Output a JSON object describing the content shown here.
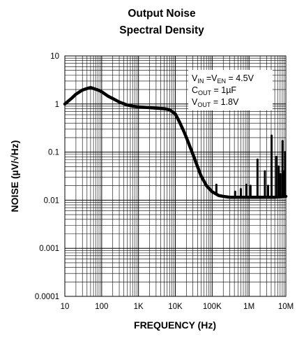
{
  "chart_data": {
    "type": "line",
    "title_line1": "Output Noise",
    "title_line2": "Spectral Density",
    "xlabel": "FREQUENCY (Hz)",
    "ylabel": "NOISE (µV/√Hz)",
    "x_scale": "log",
    "y_scale": "log",
    "xlim": [
      10,
      10000000
    ],
    "ylim": [
      0.0001,
      10
    ],
    "grid": true,
    "x_ticks": [
      {
        "value": 10,
        "label": "10"
      },
      {
        "value": 100,
        "label": "100"
      },
      {
        "value": 1000,
        "label": "1K"
      },
      {
        "value": 10000,
        "label": "10K"
      },
      {
        "value": 100000,
        "label": "100K"
      },
      {
        "value": 1000000,
        "label": "1M"
      },
      {
        "value": 10000000,
        "label": "10M"
      }
    ],
    "y_ticks": [
      {
        "value": 10,
        "label": "10"
      },
      {
        "value": 1,
        "label": "1"
      },
      {
        "value": 0.1,
        "label": "0.1"
      },
      {
        "value": 0.01,
        "label": "0.01"
      },
      {
        "value": 0.001,
        "label": "0.001"
      },
      {
        "value": 0.0001,
        "label": "0.0001"
      }
    ],
    "annotation": {
      "line1": {
        "a": "V",
        "a_sub": "IN",
        "b": " =V",
        "b_sub": "EN",
        "c": " = 4.5V"
      },
      "line2": {
        "a": "C",
        "a_sub": "OUT",
        "c": " = 1µF"
      },
      "line3": {
        "a": "V",
        "a_sub": "OUT",
        "c": " = 1.8V"
      }
    },
    "series": [
      {
        "color": "#000000",
        "points": [
          [
            10,
            1.0
          ],
          [
            15,
            1.3
          ],
          [
            20,
            1.6
          ],
          [
            30,
            1.95
          ],
          [
            40,
            2.1
          ],
          [
            50,
            2.2
          ],
          [
            60,
            2.1
          ],
          [
            80,
            1.95
          ],
          [
            100,
            1.8
          ],
          [
            150,
            1.45
          ],
          [
            200,
            1.3
          ],
          [
            300,
            1.1
          ],
          [
            500,
            0.95
          ],
          [
            700,
            0.9
          ],
          [
            1000,
            0.87
          ],
          [
            2000,
            0.84
          ],
          [
            3000,
            0.82
          ],
          [
            5000,
            0.8
          ],
          [
            7000,
            0.76
          ],
          [
            10000,
            0.62
          ],
          [
            13000,
            0.42
          ],
          [
            17000,
            0.27
          ],
          [
            20000,
            0.2
          ],
          [
            30000,
            0.09
          ],
          [
            40000,
            0.05
          ],
          [
            50000,
            0.032
          ],
          [
            70000,
            0.02
          ],
          [
            100000,
            0.015
          ],
          [
            150000,
            0.0125
          ],
          [
            200000,
            0.012
          ],
          [
            300000,
            0.0115
          ],
          [
            500000,
            0.0115
          ],
          [
            1000000,
            0.0115
          ],
          [
            2000000,
            0.0115
          ],
          [
            5000000,
            0.0115
          ],
          [
            10000000,
            0.012
          ]
        ],
        "spikes": [
          [
            130000,
            0.021
          ],
          [
            420000,
            0.015
          ],
          [
            600000,
            0.017
          ],
          [
            850000,
            0.021
          ],
          [
            1100000,
            0.02
          ],
          [
            1700000,
            0.07
          ],
          [
            2700000,
            0.04
          ],
          [
            3300000,
            0.02
          ],
          [
            4100000,
            0.22
          ],
          [
            5500000,
            0.08
          ],
          [
            6300000,
            0.05
          ],
          [
            7100000,
            0.035
          ],
          [
            8100000,
            0.17
          ],
          [
            9000000,
            0.04
          ],
          [
            9600000,
            0.1
          ]
        ]
      }
    ]
  }
}
